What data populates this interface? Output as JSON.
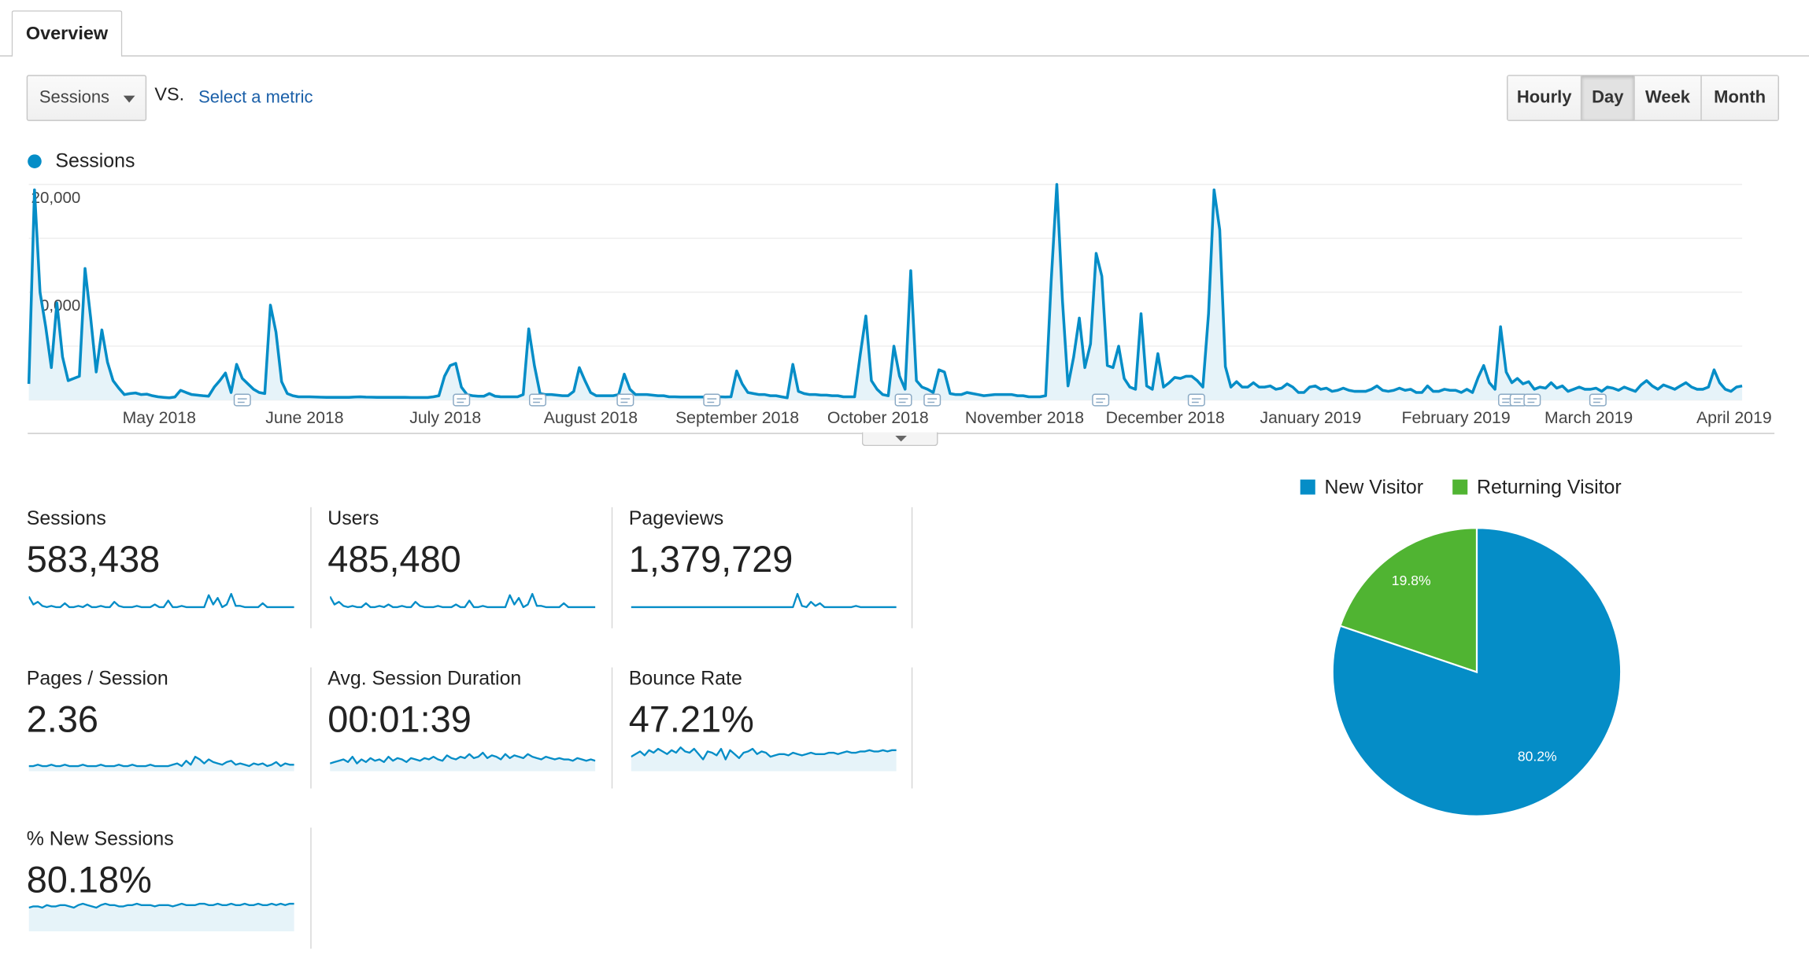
{
  "tab": {
    "label": "Overview"
  },
  "metric_selector": {
    "value": "Sessions",
    "vs_label": "VS.",
    "compare_link": "Select a metric"
  },
  "period_buttons": [
    {
      "label": "Hourly",
      "active": false
    },
    {
      "label": "Day",
      "active": true
    },
    {
      "label": "Week",
      "active": false
    },
    {
      "label": "Month",
      "active": false
    }
  ],
  "chart_legend": {
    "label": "Sessions",
    "color": "#058dc7"
  },
  "colors": {
    "accent": "#058dc7",
    "area_fill": "#e6f3f9",
    "returning": "#50b432",
    "gridline": "#eeeeee"
  },
  "chart_data": [
    {
      "type": "area",
      "series": [
        {
          "name": "Sessions",
          "values": [
            1500,
            19500,
            10000,
            6800,
            3000,
            9000,
            4000,
            1800,
            2000,
            2200,
            12200,
            7600,
            2600,
            6500,
            3500,
            1800,
            1100,
            500,
            600,
            650,
            500,
            550,
            400,
            300,
            250,
            200,
            280,
            900,
            700,
            500,
            450,
            400,
            350,
            1200,
            1800,
            2500,
            700,
            3300,
            2000,
            1500,
            1000,
            700,
            600,
            8800,
            6300,
            1700,
            600,
            400,
            300,
            300,
            300,
            280,
            260,
            250,
            250,
            250,
            250,
            250,
            280,
            300,
            270,
            260,
            250,
            250,
            250,
            250,
            250,
            250,
            240,
            230,
            230,
            230,
            300,
            400,
            2200,
            3200,
            3400,
            1200,
            500,
            400,
            350,
            350,
            600,
            350,
            300,
            300,
            300,
            300,
            500,
            6600,
            3200,
            600,
            500,
            500,
            450,
            400,
            400,
            800,
            3000,
            1800,
            700,
            400,
            400,
            400,
            400,
            500,
            2400,
            1000,
            500,
            500,
            500,
            450,
            400,
            400,
            300,
            300,
            280,
            280,
            280,
            280,
            280,
            300,
            300,
            300,
            280,
            300,
            2700,
            1500,
            700,
            600,
            500,
            500,
            400,
            400,
            300,
            200,
            3300,
            800,
            600,
            500,
            500,
            450,
            450,
            400,
            400,
            300,
            300,
            300,
            4200,
            7800,
            1800,
            1000,
            500,
            400,
            5000,
            2200,
            1000,
            12000,
            1800,
            1200,
            1000,
            700,
            2800,
            2600,
            600,
            500,
            500,
            700,
            600,
            500,
            400,
            450,
            500,
            500,
            500,
            500,
            400,
            400,
            300,
            300,
            300,
            400,
            11000,
            20000,
            9200,
            1300,
            4000,
            7600,
            3000,
            5200,
            13600,
            11500,
            3200,
            3000,
            5000,
            2000,
            1200,
            1000,
            8000,
            1300,
            1000,
            4300,
            1200,
            1600,
            2100,
            2000,
            2200,
            2200,
            1800,
            1200,
            8000,
            19500,
            15800,
            3100,
            1200,
            1700,
            1200,
            1200,
            1600,
            1200,
            1200,
            1300,
            1000,
            1100,
            1500,
            1200,
            700,
            700,
            1200,
            1300,
            1000,
            1100,
            800,
            900,
            1100,
            900,
            800,
            800,
            800,
            1000,
            1300,
            900,
            800,
            900,
            1100,
            900,
            1000,
            700,
            700,
            1300,
            800,
            800,
            1000,
            900,
            900,
            700,
            1000,
            700,
            2100,
            3200,
            1600,
            1000,
            6800,
            2600,
            1600,
            2000,
            1500,
            1700,
            1000,
            1200,
            1100,
            1600,
            1100,
            1300,
            800,
            1000,
            1200,
            1000,
            1000,
            1100,
            800,
            1200,
            1100,
            900,
            1200,
            1000,
            800,
            1400,
            1800,
            1300,
            1000,
            1400,
            1200,
            1000,
            1300,
            1600,
            1200,
            1000,
            1000,
            1200,
            2800,
            1600,
            1000,
            800,
            1200,
            1300
          ]
        }
      ],
      "x_labels": [
        "May 2018",
        "June 2018",
        "July 2018",
        "August 2018",
        "September 2018",
        "October 2018",
        "November 2018",
        "December 2018",
        "January 2019",
        "February 2019",
        "March 2019",
        "April 2019"
      ],
      "y_ticks": [
        "20,000",
        "10,000"
      ],
      "ylim": [
        0,
        20000
      ],
      "grid": true
    },
    {
      "type": "line",
      "series": [
        {
          "name": "Sessions",
          "values": [
            10,
            4,
            6,
            3,
            2,
            3,
            2,
            2,
            5,
            2,
            2,
            3,
            2,
            4,
            2,
            2,
            3,
            2,
            2,
            6,
            3,
            2,
            2,
            2,
            3,
            2,
            2,
            2,
            4,
            2,
            2,
            7,
            2,
            2,
            3,
            2,
            2,
            2,
            2,
            2,
            11,
            4,
            9,
            2,
            4,
            12,
            3,
            3,
            2,
            2,
            2,
            2,
            5,
            2,
            2,
            2,
            2,
            2,
            2,
            2
          ]
        }
      ]
    },
    {
      "type": "line",
      "series": [
        {
          "name": "Users",
          "values": [
            10,
            4,
            6,
            3,
            2,
            3,
            2,
            2,
            5,
            2,
            2,
            3,
            2,
            4,
            2,
            2,
            3,
            2,
            2,
            6,
            3,
            2,
            2,
            2,
            3,
            2,
            2,
            2,
            4,
            2,
            2,
            7,
            2,
            2,
            3,
            2,
            2,
            2,
            2,
            2,
            11,
            4,
            9,
            2,
            4,
            12,
            3,
            3,
            2,
            2,
            2,
            2,
            5,
            2,
            2,
            2,
            2,
            2,
            2,
            2
          ]
        }
      ]
    },
    {
      "type": "line",
      "series": [
        {
          "name": "Pageviews",
          "values": [
            2,
            2,
            2,
            2,
            2,
            2,
            2,
            2,
            2,
            2,
            2,
            2,
            2,
            2,
            2,
            2,
            2,
            2,
            2,
            2,
            2,
            2,
            2,
            2,
            2,
            2,
            2,
            2,
            2,
            2,
            2,
            2,
            2,
            2,
            2,
            2,
            2,
            12,
            3,
            2,
            6,
            3,
            5,
            2,
            2,
            2,
            2,
            2,
            2,
            2,
            3,
            2,
            2,
            2,
            2,
            2,
            2,
            2,
            2,
            2
          ]
        }
      ]
    },
    {
      "type": "area",
      "series": [
        {
          "name": "Pages / Session",
          "values": [
            3,
            3,
            4,
            3,
            3,
            4,
            3,
            3,
            4,
            3,
            3,
            3,
            4,
            3,
            3,
            3,
            4,
            3,
            3,
            3,
            4,
            3,
            3,
            4,
            3,
            3,
            3,
            4,
            3,
            3,
            3,
            3,
            4,
            5,
            3,
            7,
            4,
            10,
            8,
            5,
            8,
            6,
            5,
            4,
            6,
            7,
            4,
            5,
            4,
            3,
            5,
            4,
            5,
            3,
            4,
            6,
            3,
            5,
            4,
            4
          ]
        }
      ]
    },
    {
      "type": "area",
      "series": [
        {
          "name": "Avg. Session Duration",
          "values": [
            5,
            6,
            7,
            8,
            6,
            10,
            5,
            8,
            6,
            9,
            7,
            8,
            6,
            10,
            7,
            9,
            8,
            6,
            9,
            8,
            7,
            9,
            8,
            10,
            8,
            7,
            11,
            9,
            8,
            10,
            9,
            12,
            9,
            10,
            13,
            9,
            11,
            10,
            8,
            12,
            9,
            11,
            10,
            9,
            12,
            10,
            9,
            8,
            10,
            9,
            8,
            9,
            8,
            8,
            7,
            9,
            8,
            7,
            8,
            7
          ]
        }
      ]
    },
    {
      "type": "area",
      "series": [
        {
          "name": "Bounce Rate",
          "values": [
            10,
            12,
            14,
            11,
            15,
            13,
            16,
            14,
            12,
            15,
            13,
            17,
            14,
            13,
            16,
            12,
            8,
            14,
            13,
            11,
            16,
            8,
            15,
            12,
            9,
            13,
            14,
            16,
            12,
            14,
            13,
            10,
            11,
            12,
            12,
            11,
            13,
            12,
            11,
            12,
            13,
            12,
            12,
            12,
            13,
            13,
            12,
            13,
            14,
            13,
            13,
            14,
            14,
            15,
            14,
            14,
            15,
            14,
            15,
            15
          ]
        }
      ]
    },
    {
      "type": "area",
      "series": [
        {
          "name": "% New Sessions",
          "values": [
            17,
            18,
            18,
            17,
            19,
            18,
            18,
            19,
            19,
            18,
            17,
            19,
            20,
            19,
            18,
            17,
            19,
            20,
            19,
            19,
            18,
            18,
            19,
            19,
            20,
            19,
            19,
            19,
            18,
            19,
            19,
            19,
            18,
            19,
            20,
            19,
            19,
            19,
            20,
            20,
            19,
            19,
            20,
            19,
            19,
            20,
            19,
            19,
            20,
            19,
            19,
            20,
            19,
            19,
            20,
            19,
            20,
            19,
            20,
            20
          ]
        }
      ]
    },
    {
      "type": "pie",
      "categories": [
        "New Visitor",
        "Returning Visitor"
      ],
      "values": [
        80.2,
        19.8
      ],
      "labels": [
        "80.2%",
        "19.8%"
      ]
    }
  ],
  "scorecards": [
    {
      "title": "Sessions",
      "value": "583,438"
    },
    {
      "title": "Users",
      "value": "485,480"
    },
    {
      "title": "Pageviews",
      "value": "1,379,729"
    },
    {
      "title": "Pages / Session",
      "value": "2.36"
    },
    {
      "title": "Avg. Session Duration",
      "value": "00:01:39"
    },
    {
      "title": "Bounce Rate",
      "value": "47.21%"
    },
    {
      "title": "% New Sessions",
      "value": "80.18%"
    }
  ],
  "pie_legend": [
    {
      "label": "New Visitor",
      "color": "#058dc7"
    },
    {
      "label": "Returning Visitor",
      "color": "#50b432"
    }
  ]
}
